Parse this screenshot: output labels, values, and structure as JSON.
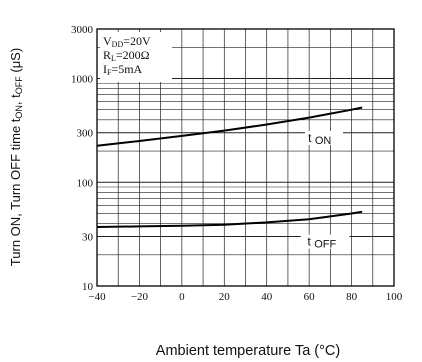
{
  "chart_data": {
    "type": "line",
    "xlabel": "Ambient temperature Ta (°C)",
    "ylabel": "Turn ON, Turn OFF time tON, tOFF (μS)",
    "ylabel_parts": {
      "prefix": "Turn ON, Turn OFF time t",
      "sub1": "ON",
      "mid": ", t",
      "sub2": "OFF",
      "suffix": " (μS)"
    },
    "xlim": [
      -40,
      100
    ],
    "ylim": [
      10,
      3000
    ],
    "y_scale": "log",
    "grid": true,
    "x_ticks": [
      "−40",
      "−20",
      "0",
      "20",
      "40",
      "60",
      "80",
      "100"
    ],
    "x_tick_values": [
      -40,
      -20,
      0,
      20,
      40,
      60,
      80,
      100
    ],
    "y_ticks": [
      "10",
      "30",
      "100",
      "300",
      "1000",
      "3000"
    ],
    "y_tick_values": [
      10,
      30,
      100,
      300,
      1000,
      3000
    ],
    "conditions": [
      {
        "main": "V",
        "sub": "DD",
        "rest": "=20V"
      },
      {
        "main": "R",
        "sub": "L",
        "rest": "=200Ω"
      },
      {
        "main": "I",
        "sub": "F",
        "rest": "=5mA"
      }
    ],
    "series": [
      {
        "name": "t ON",
        "label_main": "t",
        "label_sub": "ON",
        "x": [
          -40,
          -20,
          0,
          20,
          40,
          60,
          80,
          85
        ],
        "values": [
          225,
          250,
          280,
          315,
          360,
          420,
          500,
          525
        ]
      },
      {
        "name": "t OFF",
        "label_main": "t",
        "label_sub": "OFF",
        "x": [
          -40,
          -20,
          0,
          20,
          40,
          60,
          80,
          85
        ],
        "values": [
          37,
          37.5,
          38,
          39,
          41,
          44,
          50,
          52
        ]
      }
    ]
  }
}
